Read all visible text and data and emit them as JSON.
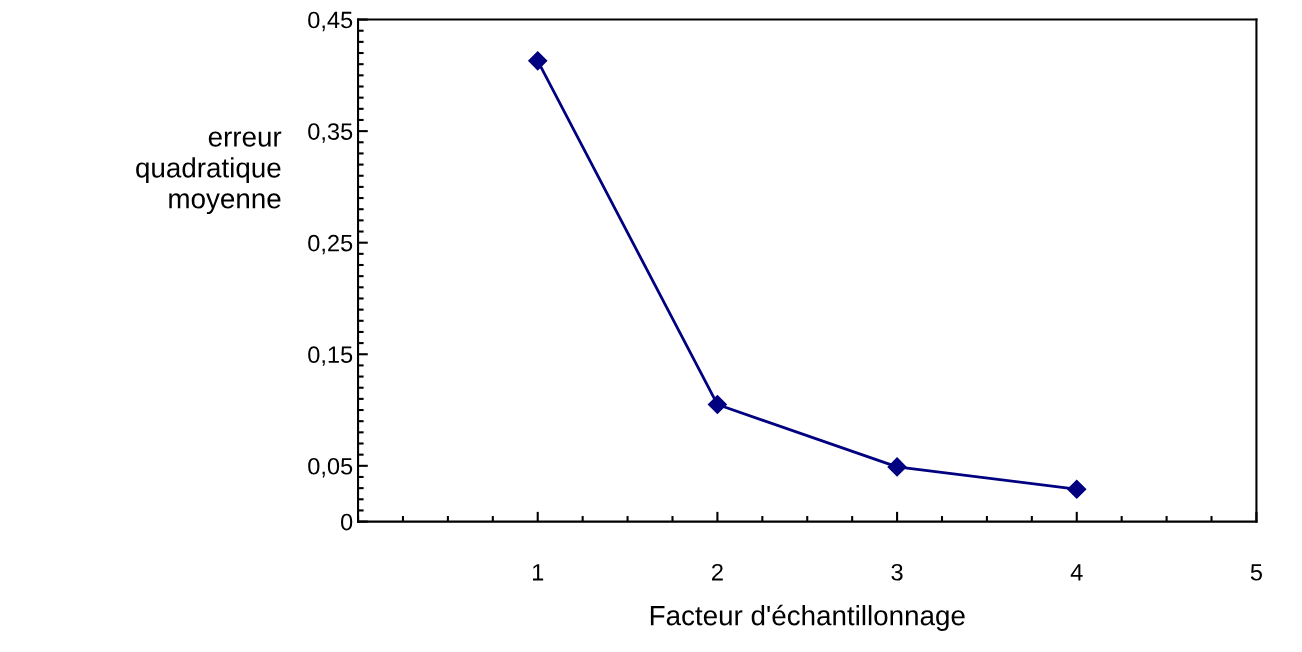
{
  "chart_data": {
    "type": "line",
    "xlabel": "Facteur d'échantillonnage",
    "ylabel": "erreur\nquadratique\nmoyenne",
    "x": [
      1,
      2,
      3,
      4
    ],
    "series": [
      {
        "color": "#000080",
        "values": [
          0.413,
          0.105,
          0.049,
          0.029
        ]
      }
    ],
    "xlim": [
      0,
      5
    ],
    "xticks": [
      1,
      2,
      3,
      4,
      5
    ],
    "ylim": [
      0,
      0.45
    ],
    "yticks": [
      {
        "value": 0,
        "label": "0"
      },
      {
        "value": 0.05,
        "label": "0,05"
      },
      {
        "value": 0.15,
        "label": "0,15"
      },
      {
        "value": 0.25,
        "label": "0,25"
      },
      {
        "value": 0.35,
        "label": "0,35"
      },
      {
        "value": 0.45,
        "label": "0,45"
      }
    ],
    "marker": "diamond",
    "line_style": "solid",
    "grid": false,
    "legend": false
  }
}
